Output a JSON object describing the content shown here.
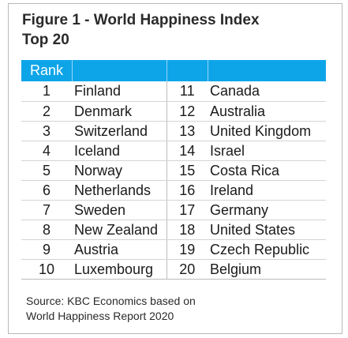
{
  "figure": {
    "title_line1": "Figure 1 - World Happiness Index",
    "title_line2": "Top 20"
  },
  "table": {
    "header": "Rank",
    "left": [
      {
        "rank": "1",
        "country": "Finland"
      },
      {
        "rank": "2",
        "country": "Denmark"
      },
      {
        "rank": "3",
        "country": "Switzerland"
      },
      {
        "rank": "4",
        "country": "Iceland"
      },
      {
        "rank": "5",
        "country": "Norway"
      },
      {
        "rank": "6",
        "country": "Netherlands"
      },
      {
        "rank": "7",
        "country": "Sweden"
      },
      {
        "rank": "8",
        "country": "New Zealand"
      },
      {
        "rank": "9",
        "country": "Austria"
      },
      {
        "rank": "10",
        "country": "Luxembourg"
      }
    ],
    "right": [
      {
        "rank": "11",
        "country": "Canada"
      },
      {
        "rank": "12",
        "country": "Australia"
      },
      {
        "rank": "13",
        "country": "United Kingdom"
      },
      {
        "rank": "14",
        "country": "Israel"
      },
      {
        "rank": "15",
        "country": "Costa Rica"
      },
      {
        "rank": "16",
        "country": "Ireland"
      },
      {
        "rank": "17",
        "country": "Germany"
      },
      {
        "rank": "18",
        "country": "United States"
      },
      {
        "rank": "19",
        "country": "Czech Republic"
      },
      {
        "rank": "20",
        "country": "Belgium"
      }
    ]
  },
  "source": {
    "line1": "Source: KBC Economics based on",
    "line2": "World Happiness Report 2020"
  }
}
